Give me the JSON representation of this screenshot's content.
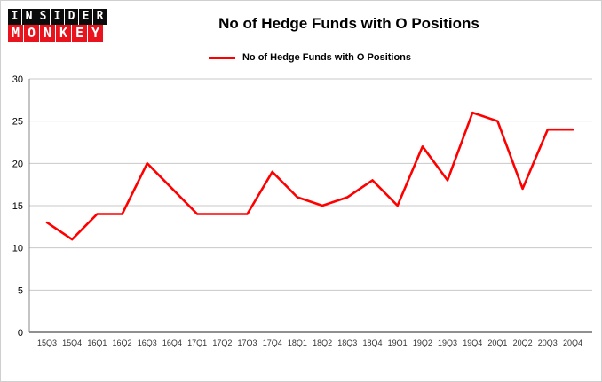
{
  "header": {
    "logo_line1": "INSIDER",
    "logo_line2": "MONKEY",
    "title": "No of Hedge Funds with O Positions",
    "legend_label": "No of Hedge Funds with O Positions"
  },
  "colors": {
    "logo_black": "#0b0b0b",
    "logo_red": "#e8131d",
    "line_red": "#ff0000",
    "gridline": "#c8c8c8"
  },
  "chart_data": {
    "type": "line",
    "title": "No of Hedge Funds with O Positions",
    "categories": [
      "15Q3",
      "15Q4",
      "16Q1",
      "16Q2",
      "16Q3",
      "16Q4",
      "17Q1",
      "17Q2",
      "17Q3",
      "17Q4",
      "18Q1",
      "18Q2",
      "18Q3",
      "18Q4",
      "19Q1",
      "19Q2",
      "19Q3",
      "19Q4",
      "20Q1",
      "20Q2",
      "20Q3",
      "20Q4"
    ],
    "values": [
      13,
      11,
      14,
      14,
      20,
      17,
      14,
      14,
      14,
      19,
      16,
      15,
      16,
      18,
      15,
      22,
      18,
      26,
      25,
      17,
      24,
      24
    ],
    "xlabel": "",
    "ylabel": "",
    "ylim": [
      0,
      30
    ],
    "yticks": [
      0,
      5,
      10,
      15,
      20,
      25,
      30
    ],
    "line_color": "#ff0000",
    "grid": true,
    "legend_position": "top-center"
  }
}
